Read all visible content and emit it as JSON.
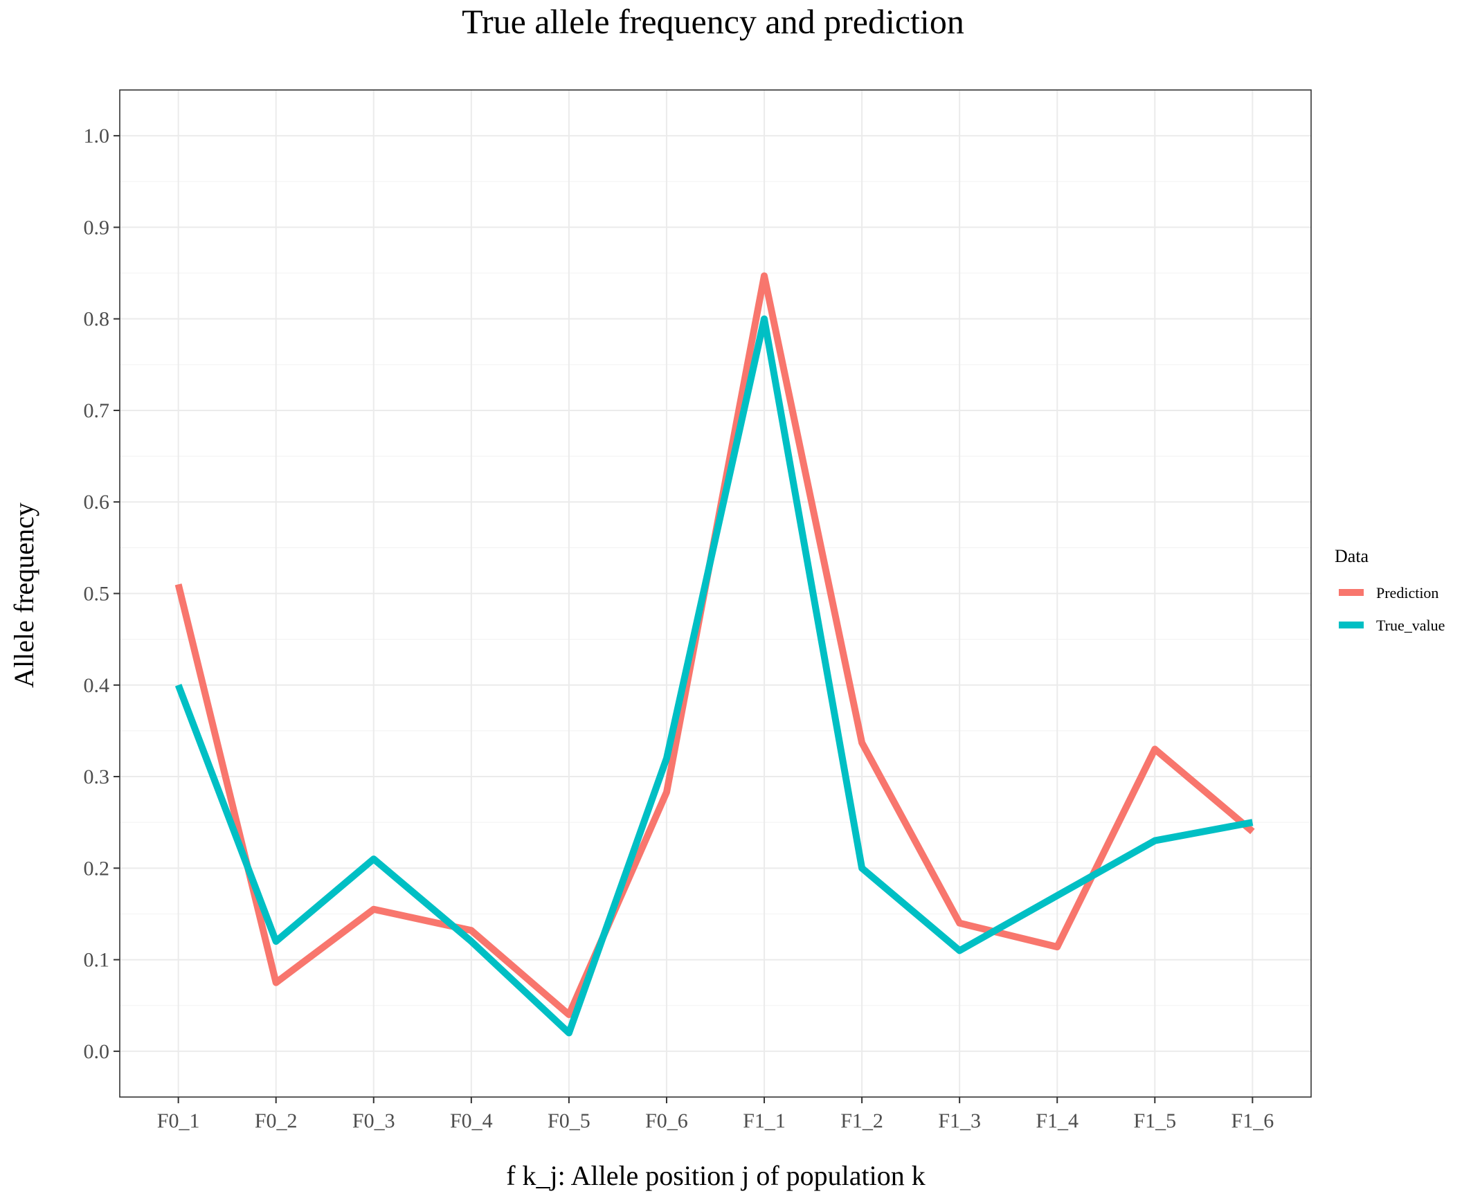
{
  "chart_data": {
    "type": "line",
    "title": "True allele frequency and prediction",
    "xlabel": "f k_j: Allele position j of population k",
    "ylabel": "Allele frequency",
    "categories": [
      "F0_1",
      "F0_2",
      "F0_3",
      "F0_4",
      "F0_5",
      "F0_6",
      "F1_1",
      "F1_2",
      "F1_3",
      "F1_4",
      "F1_5",
      "F1_6"
    ],
    "ylim": [
      -0.05,
      1.05
    ],
    "yticks": [
      "0.0",
      "0.1",
      "0.2",
      "0.3",
      "0.4",
      "0.5",
      "0.6",
      "0.7",
      "0.8",
      "0.9",
      "1.0"
    ],
    "grid": true,
    "legend": {
      "title": "Data",
      "position": "right"
    },
    "series": [
      {
        "name": "Prediction",
        "color": "#F8766D",
        "values": [
          0.51,
          0.075,
          0.155,
          0.132,
          0.04,
          0.283,
          0.847,
          0.337,
          0.14,
          0.114,
          0.33,
          0.24
        ]
      },
      {
        "name": "True_value",
        "color": "#00BFC4",
        "values": [
          0.4,
          0.12,
          0.21,
          0.12,
          0.02,
          0.32,
          0.8,
          0.2,
          0.11,
          0.17,
          0.23,
          0.25
        ]
      }
    ]
  }
}
